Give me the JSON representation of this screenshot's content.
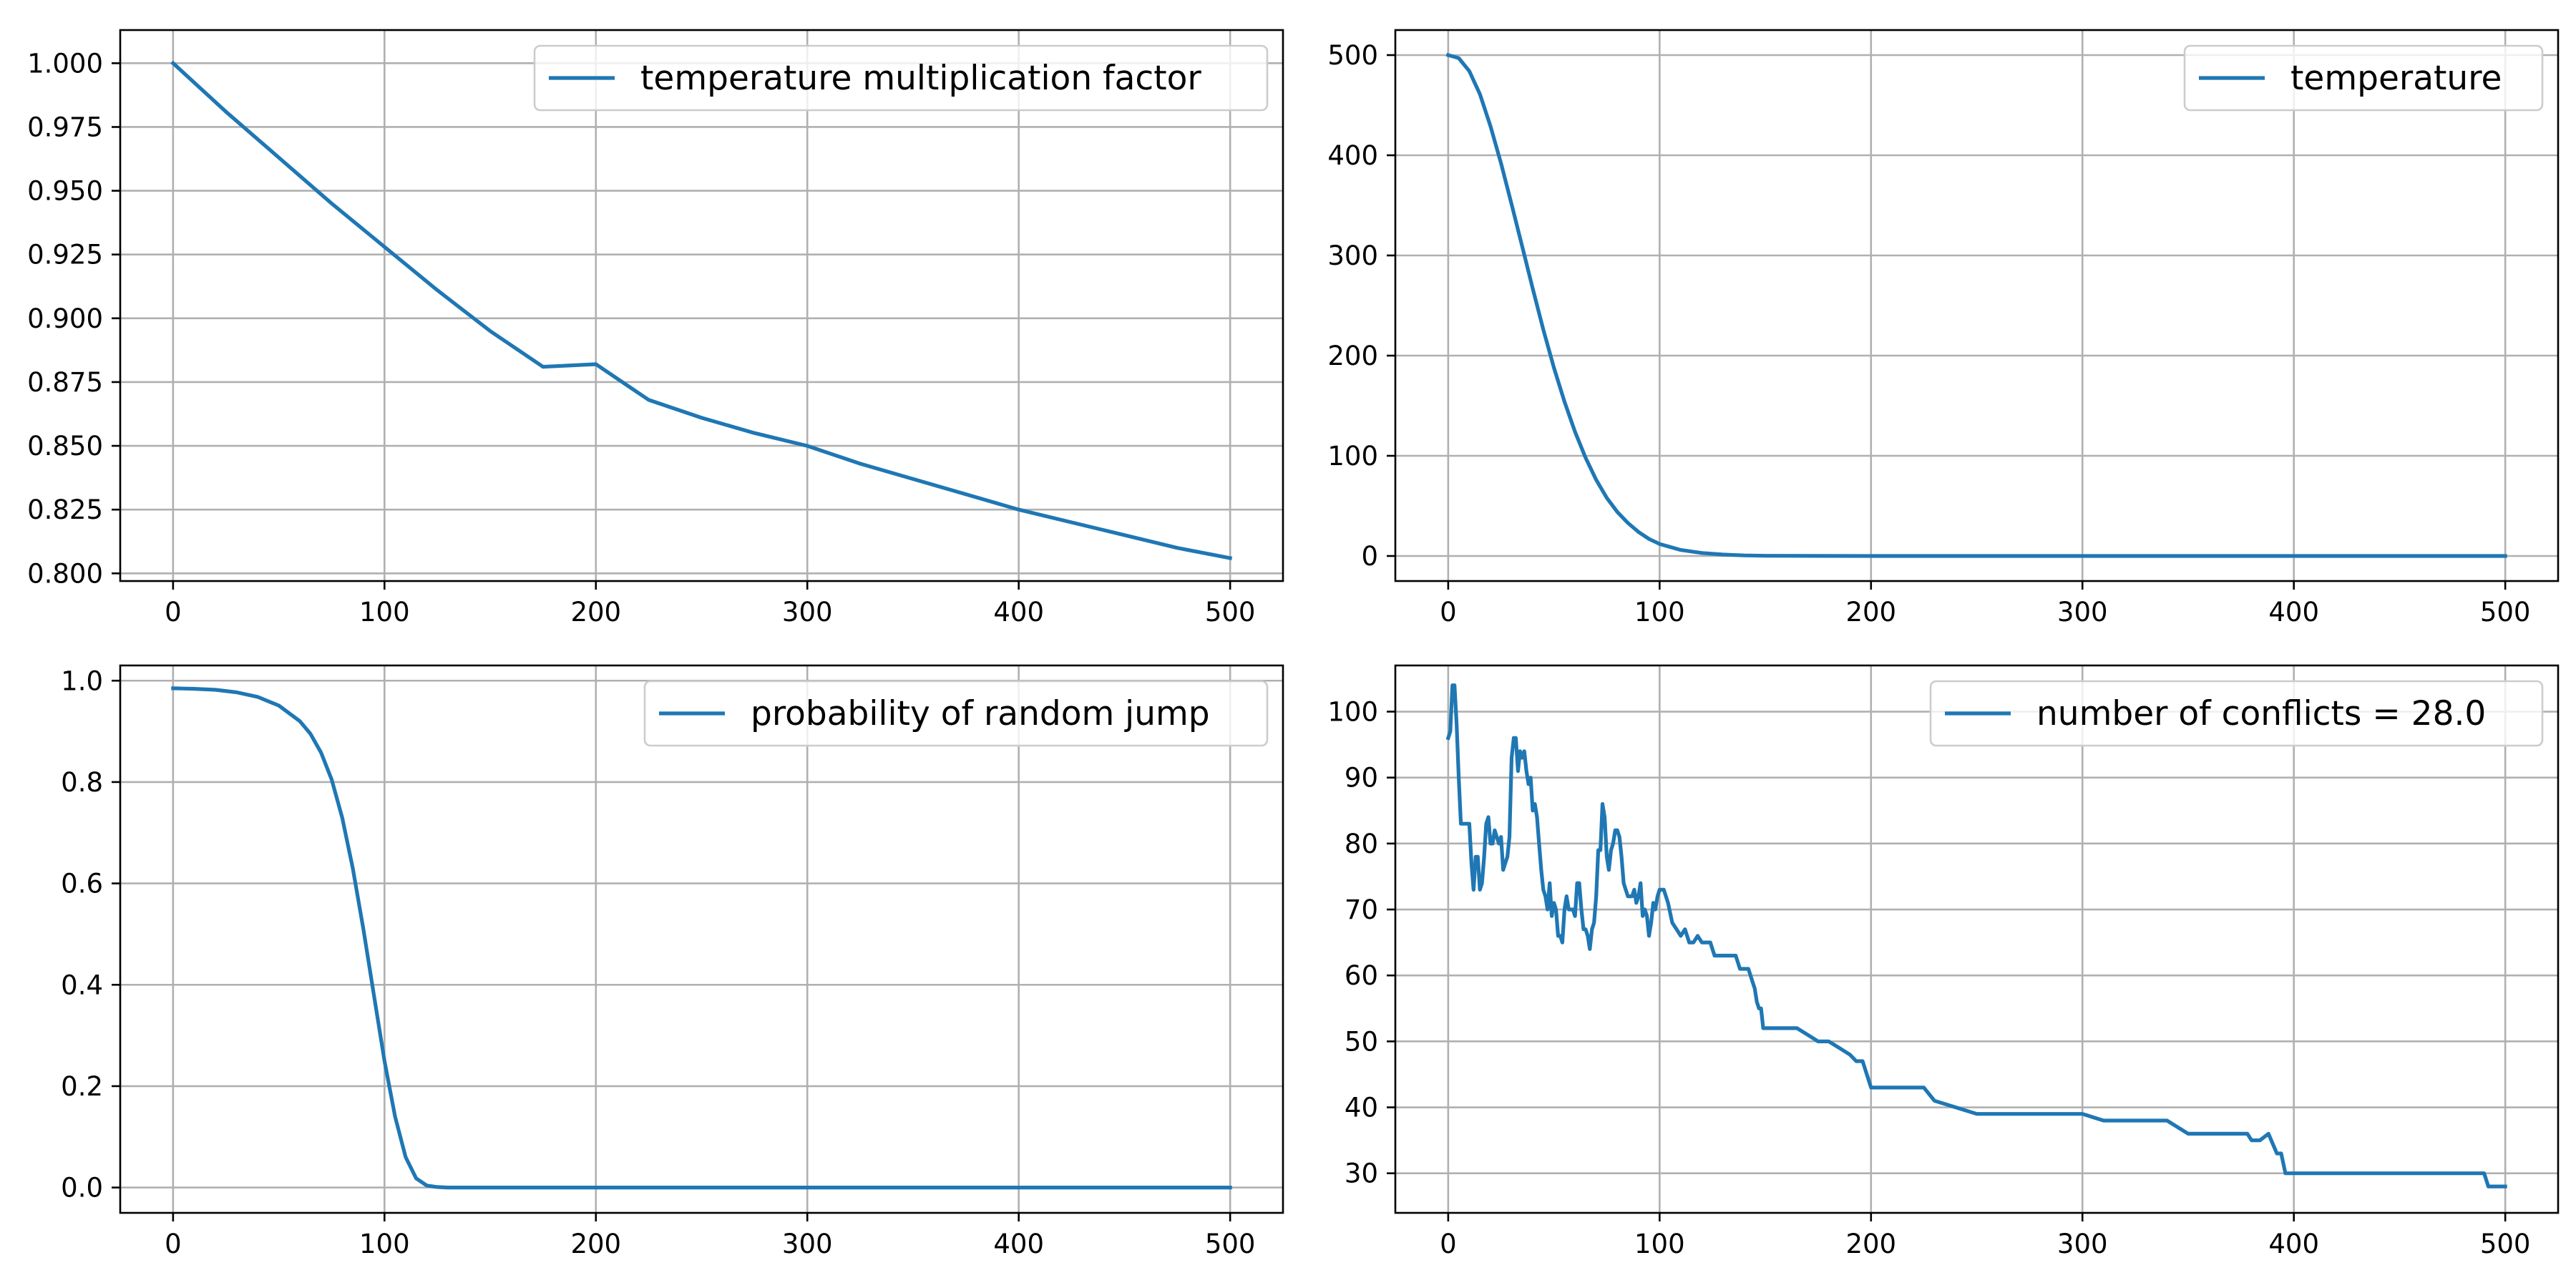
{
  "chart_data": [
    {
      "type": "line",
      "x_ticks": [
        0,
        100,
        200,
        300,
        400,
        500
      ],
      "y_ticks": [
        0.8,
        0.825,
        0.85,
        0.875,
        0.9,
        0.925,
        0.95,
        0.975,
        1.0
      ],
      "y_tick_labels": [
        "0.800",
        "0.825",
        "0.850",
        "0.875",
        "0.900",
        "0.925",
        "0.950",
        "0.975",
        "1.000"
      ],
      "xlim": [
        -25,
        525
      ],
      "ylim": [
        0.797,
        1.013
      ],
      "grid": true,
      "legend_position": "top-right",
      "series": [
        {
          "name": "temperature multiplication factor",
          "color": "#1f77b4",
          "x": [
            0,
            25,
            50,
            75,
            100,
            125,
            150,
            175,
            200,
            225,
            250,
            275,
            300,
            325,
            350,
            375,
            400,
            425,
            450,
            475,
            500
          ],
          "y": [
            1.0,
            0.981,
            0.963,
            0.945,
            0.928,
            0.911,
            0.895,
            0.881,
            0.882,
            0.868,
            0.861,
            0.855,
            0.85,
            0.843,
            0.837,
            0.831,
            0.825,
            0.82,
            0.815,
            0.81,
            0.806
          ]
        }
      ]
    },
    {
      "type": "line",
      "x_ticks": [
        0,
        100,
        200,
        300,
        400,
        500
      ],
      "y_ticks": [
        0,
        100,
        200,
        300,
        400,
        500
      ],
      "y_tick_labels": [
        "0",
        "100",
        "200",
        "300",
        "400",
        "500"
      ],
      "xlim": [
        -25,
        525
      ],
      "ylim": [
        -25,
        525
      ],
      "grid": true,
      "legend_position": "top-right",
      "series": [
        {
          "name": "temperature",
          "color": "#1f77b4",
          "x": [
            0,
            5,
            10,
            15,
            20,
            25,
            30,
            35,
            40,
            45,
            50,
            55,
            60,
            65,
            70,
            75,
            80,
            85,
            90,
            95,
            100,
            110,
            120,
            130,
            140,
            150,
            200,
            300,
            400,
            500
          ],
          "y": [
            500,
            497,
            484,
            461,
            429,
            392,
            351,
            309,
            267,
            226,
            188,
            154,
            124,
            98,
            76,
            58,
            44,
            33,
            24,
            17,
            12,
            6,
            3,
            1.4,
            0.6,
            0.2,
            0,
            0,
            0,
            0
          ]
        }
      ]
    },
    {
      "type": "line",
      "x_ticks": [
        0,
        100,
        200,
        300,
        400,
        500
      ],
      "y_ticks": [
        0.0,
        0.2,
        0.4,
        0.6,
        0.8,
        1.0
      ],
      "y_tick_labels": [
        "0.0",
        "0.2",
        "0.4",
        "0.6",
        "0.8",
        "1.0"
      ],
      "xlim": [
        -25,
        525
      ],
      "ylim": [
        -0.05,
        1.03
      ],
      "grid": true,
      "legend_position": "top-right",
      "series": [
        {
          "name": "probability of random jump",
          "color": "#1f77b4",
          "x": [
            0,
            10,
            20,
            30,
            40,
            50,
            60,
            65,
            70,
            75,
            80,
            85,
            90,
            95,
            100,
            105,
            110,
            115,
            120,
            125,
            130,
            200,
            300,
            400,
            500
          ],
          "y": [
            0.985,
            0.984,
            0.982,
            0.977,
            0.968,
            0.951,
            0.92,
            0.895,
            0.858,
            0.805,
            0.73,
            0.63,
            0.51,
            0.38,
            0.25,
            0.14,
            0.06,
            0.018,
            0.004,
            0.001,
            0.0,
            0.0,
            0.0,
            0.0,
            0.0
          ]
        }
      ]
    },
    {
      "type": "line",
      "x_ticks": [
        0,
        100,
        200,
        300,
        400,
        500
      ],
      "y_ticks": [
        30,
        40,
        50,
        60,
        70,
        80,
        90,
        100
      ],
      "y_tick_labels": [
        "30",
        "40",
        "50",
        "60",
        "70",
        "80",
        "90",
        "100"
      ],
      "xlim": [
        -25,
        525
      ],
      "ylim": [
        24,
        107
      ],
      "grid": true,
      "legend_position": "top-right",
      "series": [
        {
          "name": "number of conflicts = 28.0",
          "color": "#1f77b4",
          "x": [
            0,
            1,
            2,
            3,
            4,
            5,
            6,
            7,
            8,
            9,
            10,
            11,
            12,
            13,
            14,
            15,
            16,
            17,
            18,
            19,
            20,
            21,
            22,
            23,
            24,
            25,
            26,
            27,
            28,
            29,
            30,
            31,
            32,
            33,
            34,
            35,
            36,
            37,
            38,
            39,
            40,
            41,
            42,
            43,
            44,
            45,
            46,
            47,
            48,
            49,
            50,
            51,
            52,
            53,
            54,
            55,
            56,
            57,
            58,
            59,
            60,
            61,
            62,
            63,
            64,
            65,
            66,
            67,
            68,
            69,
            70,
            71,
            72,
            73,
            74,
            75,
            76,
            77,
            78,
            79,
            80,
            81,
            82,
            83,
            84,
            85,
            86,
            87,
            88,
            89,
            90,
            91,
            92,
            93,
            94,
            95,
            96,
            97,
            98,
            99,
            100,
            102,
            104,
            106,
            108,
            110,
            112,
            114,
            116,
            118,
            120,
            122,
            124,
            126,
            128,
            130,
            132,
            134,
            136,
            138,
            140,
            142,
            144,
            145,
            146,
            147,
            148,
            149,
            150,
            155,
            160,
            165,
            170,
            175,
            180,
            185,
            190,
            193,
            196,
            200,
            210,
            220,
            225,
            230,
            240,
            250,
            260,
            270,
            280,
            290,
            299,
            300,
            310,
            320,
            330,
            339,
            340,
            350,
            360,
            370,
            376,
            378,
            380,
            384,
            388,
            392,
            394,
            396,
            400,
            420,
            440,
            460,
            480,
            490,
            492,
            496,
            500
          ],
          "y": [
            96,
            97,
            104,
            104,
            98,
            90,
            83,
            83,
            83,
            83,
            83,
            77,
            73,
            78,
            78,
            73,
            74,
            78,
            83,
            84,
            80,
            80,
            82,
            81,
            80,
            81,
            76,
            77,
            78,
            81,
            93,
            96,
            96,
            91,
            94,
            93,
            94,
            91,
            89,
            90,
            85,
            86,
            84,
            80,
            76,
            73,
            72,
            70,
            74,
            69,
            71,
            70,
            66,
            66,
            65,
            70,
            72,
            70,
            70,
            70,
            69,
            74,
            74,
            70,
            67,
            67,
            66,
            64,
            67,
            68,
            72,
            79,
            79,
            86,
            84,
            78,
            76,
            79,
            80,
            82,
            82,
            81,
            78,
            74,
            73,
            72,
            72,
            72,
            73,
            71,
            72,
            74,
            69,
            70,
            69,
            66,
            68,
            71,
            70,
            72,
            73,
            73,
            71,
            68,
            67,
            66,
            67,
            65,
            65,
            66,
            65,
            65,
            65,
            63,
            63,
            63,
            63,
            63,
            63,
            61,
            61,
            61,
            59,
            58,
            56,
            55,
            55,
            52,
            52,
            52,
            52,
            52,
            51,
            50,
            50,
            49,
            48,
            47,
            47,
            43,
            43,
            43,
            43,
            41,
            40,
            39,
            39,
            39,
            39,
            39,
            39,
            39,
            38,
            38,
            38,
            38,
            38,
            36,
            36,
            36,
            36,
            36,
            35,
            35,
            36,
            33,
            33,
            30,
            30,
            30,
            30,
            30,
            30,
            30,
            28,
            28,
            28
          ]
        }
      ]
    }
  ]
}
